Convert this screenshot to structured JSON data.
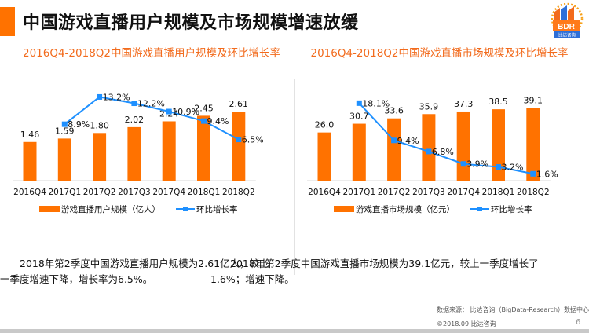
{
  "page": {
    "title": "中国游戏直播用户规模及市场规模增速放缓",
    "accent_color": "#ff7200",
    "line_color": "#1e90ff",
    "logo": {
      "text": "BDR",
      "subtext": "比达咨询"
    },
    "page_number": "6",
    "source": "数据来源：  比达咨询（BigData-Research）数据中心",
    "copyright": "©2018.09  比达咨询"
  },
  "chart_data": [
    {
      "type": "bar",
      "title": "2016Q4-2018Q2中国游戏直播用户规模及环比增长率",
      "categories": [
        "2016Q4",
        "2017Q1",
        "2017Q2",
        "2017Q3",
        "2017Q4",
        "2018Q1",
        "2018Q2"
      ],
      "series": [
        {
          "name": "游戏直播用户规模（亿人）",
          "type": "bar",
          "values": [
            1.46,
            1.59,
            1.8,
            2.02,
            2.24,
            2.45,
            2.61
          ],
          "labels": [
            "1.46",
            "1.59",
            "1.80",
            "2.02",
            "2.24",
            "2.45",
            "2.61"
          ]
        },
        {
          "name": "环比增长率",
          "type": "line",
          "values": [
            null,
            8.9,
            13.2,
            12.2,
            10.9,
            9.4,
            6.5
          ],
          "labels": [
            "",
            "8.9%",
            "13.2%",
            "12.2%",
            "10.9%",
            "9.4%",
            "6.5%"
          ]
        }
      ],
      "bar_ylim": [
        0,
        3.5
      ],
      "line_ylim": [
        0,
        14
      ],
      "legend": "bottom",
      "grid": false,
      "summary": "2018年第2季度中国游戏直播用户规模为2.61亿人，较上一季度增速下降，增长率为6.5%。"
    },
    {
      "type": "bar",
      "title": "2016Q4-2018Q2中国游戏直播市场规模及环比增长率",
      "categories": [
        "2016Q4",
        "2017Q1",
        "2017Q2",
        "2017Q3",
        "2017Q4",
        "2018Q1",
        "2018Q2"
      ],
      "series": [
        {
          "name": "游戏直播市场规模（亿元）",
          "type": "bar",
          "values": [
            26.0,
            30.7,
            33.6,
            35.9,
            37.3,
            38.5,
            39.1
          ],
          "labels": [
            "26.0",
            "30.7",
            "33.6",
            "35.9",
            "37.3",
            "38.5",
            "39.1"
          ]
        },
        {
          "name": "环比增长率",
          "type": "line",
          "values": [
            null,
            18.1,
            9.4,
            6.8,
            3.9,
            3.2,
            1.6
          ],
          "labels": [
            "",
            "18.1%",
            "9.4%",
            "6.8%",
            "3.9%",
            "3.2%",
            "1.6%"
          ]
        }
      ],
      "bar_ylim": [
        0,
        50
      ],
      "line_ylim": [
        0,
        20
      ],
      "legend": "bottom",
      "grid": false,
      "summary": "2018年第2季度中国游戏直播市场规模为39.1亿元，较上一季度增长了1.6%；增速下降。"
    }
  ]
}
